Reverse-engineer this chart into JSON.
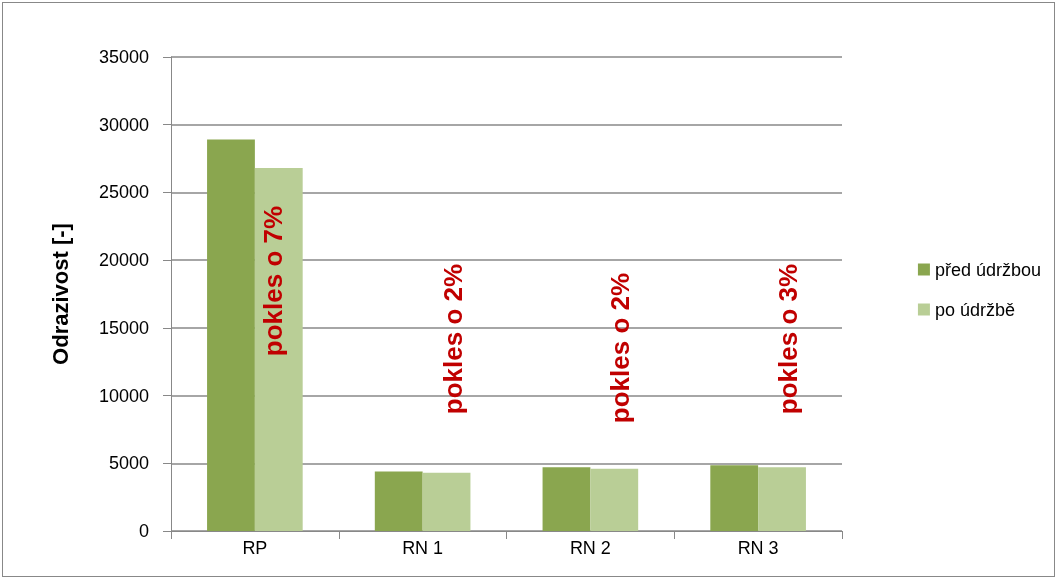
{
  "chart_data": {
    "type": "bar",
    "ylabel": "Odrazivost [-]",
    "categories": [
      "RP",
      "RN 1",
      "RN 2",
      "RN 3"
    ],
    "series": [
      {
        "name": "před údržbou",
        "color": "#8aa64f",
        "values": [
          28900,
          4400,
          4700,
          4850
        ]
      },
      {
        "name": "po údržbě",
        "color": "#b9ce96",
        "values": [
          26800,
          4300,
          4600,
          4700
        ]
      }
    ],
    "ylim": [
      0,
      35000
    ],
    "yticks": [
      0,
      5000,
      10000,
      15000,
      20000,
      25000,
      30000,
      35000
    ],
    "grid": "y",
    "legend": "right",
    "annotations": [
      "pokles o 7%",
      "pokles o 2%",
      "pokles o 2%",
      "pokles o 3%"
    ]
  }
}
